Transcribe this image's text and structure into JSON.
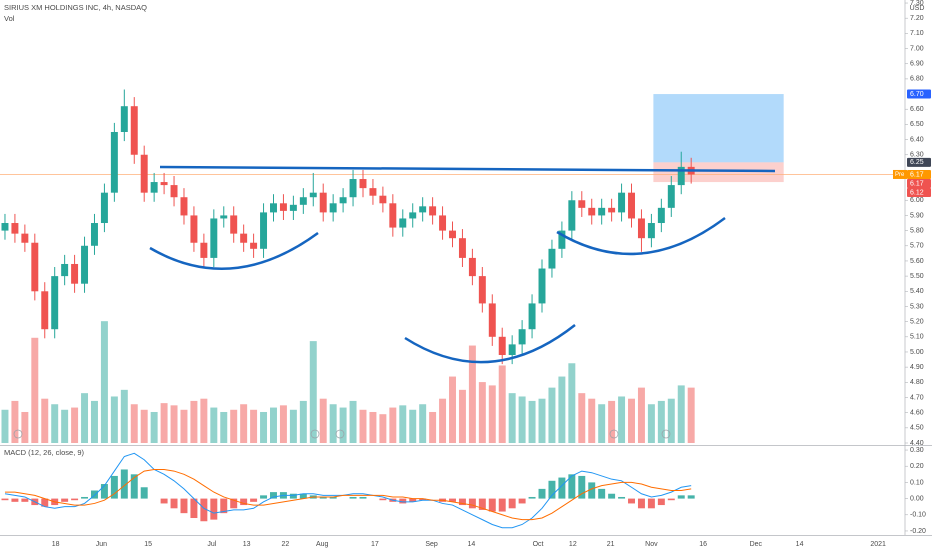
{
  "chart_data": {
    "type": "candlestick",
    "title": "SIRIUS XM HOLDINGS INC, 4h, NASDAQ",
    "volume_label": "Vol",
    "currency": "USD",
    "up_color": "#26a69a",
    "down_color": "#ef5350",
    "open": [
      5.8,
      5.85,
      5.78,
      5.72,
      5.4,
      5.15,
      5.5,
      5.58,
      5.45,
      5.7,
      5.85,
      6.05,
      6.45,
      6.62,
      6.3,
      6.05,
      6.12,
      6.1,
      6.02,
      5.9,
      5.72,
      5.62,
      5.88,
      5.9,
      5.78,
      5.72,
      5.68,
      5.92,
      5.98,
      5.93,
      5.97,
      6.02,
      6.05,
      5.92,
      5.98,
      6.02,
      6.14,
      6.08,
      6.03,
      5.98,
      5.82,
      5.88,
      5.92,
      5.96,
      5.9,
      5.8,
      5.75,
      5.62,
      5.5,
      5.32,
      5.1,
      4.98,
      5.05,
      5.15,
      5.32,
      5.55,
      5.68,
      5.8,
      6.0,
      5.95,
      5.9,
      5.95,
      5.92,
      6.05,
      5.88,
      5.75,
      5.85,
      5.95,
      6.1,
      6.22
    ],
    "high": [
      5.91,
      5.91,
      5.84,
      5.78,
      5.46,
      5.56,
      5.64,
      5.64,
      5.76,
      5.91,
      6.11,
      6.51,
      6.73,
      6.68,
      6.36,
      6.18,
      6.18,
      6.16,
      6.08,
      5.96,
      5.78,
      5.94,
      5.96,
      5.96,
      5.84,
      5.78,
      5.98,
      6.04,
      6.04,
      6.03,
      6.08,
      6.18,
      6.11,
      6.04,
      6.08,
      6.2,
      6.2,
      6.14,
      6.09,
      6.04,
      5.94,
      5.98,
      6.02,
      6.02,
      5.96,
      5.86,
      5.81,
      5.68,
      5.56,
      5.38,
      5.16,
      5.11,
      5.21,
      5.38,
      5.61,
      5.74,
      5.86,
      6.06,
      6.06,
      6.01,
      6.01,
      6.01,
      6.11,
      6.11,
      5.94,
      5.91,
      6.01,
      6.16,
      6.32,
      6.28
    ],
    "low": [
      5.74,
      5.72,
      5.66,
      5.34,
      5.09,
      5.09,
      5.44,
      5.39,
      5.39,
      5.64,
      5.79,
      5.99,
      6.39,
      6.24,
      5.99,
      5.99,
      6.04,
      5.96,
      5.84,
      5.66,
      5.56,
      5.56,
      5.82,
      5.72,
      5.66,
      5.62,
      5.62,
      5.86,
      5.87,
      5.87,
      5.91,
      5.96,
      5.86,
      5.86,
      5.92,
      5.96,
      6.02,
      5.97,
      5.92,
      5.76,
      5.76,
      5.82,
      5.86,
      5.84,
      5.74,
      5.69,
      5.56,
      5.44,
      5.26,
      5.04,
      4.92,
      4.92,
      4.99,
      5.09,
      5.26,
      5.49,
      5.62,
      5.74,
      5.89,
      5.84,
      5.84,
      5.86,
      5.86,
      5.82,
      5.66,
      5.69,
      5.79,
      5.89,
      6.04,
      6.11
    ],
    "close": [
      5.85,
      5.78,
      5.72,
      5.4,
      5.15,
      5.5,
      5.58,
      5.45,
      5.7,
      5.85,
      6.05,
      6.45,
      6.62,
      6.3,
      6.05,
      6.12,
      6.1,
      6.02,
      5.9,
      5.72,
      5.62,
      5.88,
      5.9,
      5.78,
      5.72,
      5.68,
      5.92,
      5.98,
      5.93,
      5.97,
      6.02,
      6.05,
      5.92,
      5.98,
      6.02,
      6.14,
      6.08,
      6.03,
      5.98,
      5.82,
      5.88,
      5.92,
      5.96,
      5.9,
      5.8,
      5.75,
      5.62,
      5.5,
      5.32,
      5.1,
      4.98,
      5.05,
      5.15,
      5.32,
      5.55,
      5.68,
      5.8,
      6.0,
      5.95,
      5.9,
      5.95,
      5.92,
      6.05,
      5.88,
      5.75,
      5.85,
      5.95,
      6.1,
      6.22,
      6.17
    ],
    "volume": [
      30,
      38,
      28,
      95,
      40,
      35,
      30,
      32,
      45,
      38,
      110,
      42,
      48,
      35,
      30,
      28,
      36,
      34,
      30,
      38,
      40,
      32,
      28,
      30,
      35,
      30,
      28,
      32,
      34,
      30,
      38,
      92,
      40,
      35,
      32,
      38,
      30,
      28,
      26,
      32,
      34,
      30,
      35,
      28,
      40,
      60,
      48,
      88,
      55,
      52,
      70,
      45,
      42,
      38,
      40,
      50,
      60,
      72,
      45,
      40,
      35,
      38,
      42,
      40,
      50,
      35,
      38,
      40,
      52,
      50
    ],
    "vlim": [
      0,
      400
    ],
    "xlim": [
      -0.5,
      90.5
    ],
    "xticks": [
      {
        "value": 5.1,
        "label": "18"
      },
      {
        "value": 9.7,
        "label": "Jun"
      },
      {
        "value": 14.4,
        "label": "15"
      },
      {
        "value": 20.8,
        "label": "Jul"
      },
      {
        "value": 24.3,
        "label": "13"
      },
      {
        "value": 28.2,
        "label": "22"
      },
      {
        "value": 31.9,
        "label": "Aug"
      },
      {
        "value": 37.2,
        "label": "17"
      },
      {
        "value": 42.9,
        "label": "Sep"
      },
      {
        "value": 46.9,
        "label": "14"
      },
      {
        "value": 53.6,
        "label": "Oct"
      },
      {
        "value": 57.1,
        "label": "12"
      },
      {
        "value": 60.9,
        "label": "21"
      },
      {
        "value": 65.0,
        "label": "Nov"
      },
      {
        "value": 70.2,
        "label": "16"
      },
      {
        "value": 75.5,
        "label": "Dec"
      },
      {
        "value": 79.9,
        "label": "14"
      },
      {
        "value": 87.8,
        "label": "2021"
      }
    ],
    "ylim": [
      4.4,
      7.32
    ],
    "yticks": [
      {
        "value": 7.3,
        "label": "7.30"
      },
      {
        "value": 7.2,
        "label": "7.20"
      },
      {
        "value": 7.1,
        "label": "7.10"
      },
      {
        "value": 7.0,
        "label": "7.00"
      },
      {
        "value": 6.9,
        "label": "6.90"
      },
      {
        "value": 6.8,
        "label": "6.80"
      },
      {
        "value": 6.6,
        "label": "6.60"
      },
      {
        "value": 6.5,
        "label": "6.50"
      },
      {
        "value": 6.4,
        "label": "6.40"
      },
      {
        "value": 6.3,
        "label": "6.30"
      },
      {
        "value": 6.0,
        "label": "6.00"
      },
      {
        "value": 5.9,
        "label": "5.90"
      },
      {
        "value": 5.8,
        "label": "5.80"
      },
      {
        "value": 5.7,
        "label": "5.70"
      },
      {
        "value": 5.6,
        "label": "5.60"
      },
      {
        "value": 5.5,
        "label": "5.50"
      },
      {
        "value": 5.4,
        "label": "5.40"
      },
      {
        "value": 5.3,
        "label": "5.30"
      },
      {
        "value": 5.2,
        "label": "5.20"
      },
      {
        "value": 5.1,
        "label": "5.10"
      },
      {
        "value": 5.0,
        "label": "5.00"
      },
      {
        "value": 4.9,
        "label": "4.90"
      },
      {
        "value": 4.8,
        "label": "4.80"
      },
      {
        "value": 4.7,
        "label": "4.70"
      },
      {
        "value": 4.6,
        "label": "4.60"
      },
      {
        "value": 4.5,
        "label": "4.50"
      },
      {
        "value": 4.4,
        "label": "4.40"
      }
    ],
    "markers": [
      {
        "value": 6.7,
        "label": "6.70"
      },
      6.25,
      6.17,
      6.17,
      6.12
    ],
    "marker_colors": [
      "#2962ff",
      "#3f4656",
      "#ff9800",
      "#ef5350",
      "#ef5350"
    ],
    "pre_label": "Pre",
    "macd": {
      "title": "MACD (12, 26, close, 9)",
      "ylim": [
        -0.225,
        0.325
      ],
      "yticks": [
        {
          "value": 0.3,
          "label": "0.30"
        },
        {
          "value": 0.2,
          "label": "0.20"
        },
        {
          "value": 0.1,
          "label": "0.10"
        },
        {
          "value": 0,
          "label": "0.00"
        },
        {
          "value": -0.1,
          "label": "-0.10"
        },
        {
          "value": -0.2,
          "label": "-0.20"
        }
      ],
      "macd_color": "#2196f3",
      "signal_color": "#ff6d00",
      "macd": [
        0.03,
        0.02,
        0.01,
        -0.02,
        -0.05,
        -0.06,
        -0.05,
        -0.05,
        -0.03,
        0.02,
        0.08,
        0.17,
        0.26,
        0.28,
        0.24,
        0.18,
        0.15,
        0.11,
        0.06,
        0.0,
        -0.06,
        -0.09,
        -0.08,
        -0.07,
        -0.07,
        -0.06,
        -0.02,
        0.01,
        0.02,
        0.02,
        0.03,
        0.03,
        0.02,
        0.02,
        0.02,
        0.03,
        0.03,
        0.02,
        0.01,
        -0.01,
        -0.02,
        -0.02,
        -0.01,
        -0.01,
        -0.03,
        -0.04,
        -0.07,
        -0.1,
        -0.13,
        -0.16,
        -0.18,
        -0.18,
        -0.16,
        -0.12,
        -0.06,
        0.02,
        0.08,
        0.14,
        0.17,
        0.16,
        0.14,
        0.12,
        0.11,
        0.07,
        0.03,
        0.01,
        0.02,
        0.04,
        0.07,
        0.08
      ],
      "signal": [
        0.04,
        0.04,
        0.03,
        0.02,
        0.0,
        -0.02,
        -0.03,
        -0.04,
        -0.04,
        -0.03,
        -0.01,
        0.03,
        0.08,
        0.13,
        0.17,
        0.18,
        0.18,
        0.17,
        0.15,
        0.12,
        0.08,
        0.04,
        0.01,
        -0.01,
        -0.03,
        -0.04,
        -0.04,
        -0.03,
        -0.02,
        -0.01,
        0.0,
        0.01,
        0.01,
        0.01,
        0.02,
        0.02,
        0.02,
        0.02,
        0.02,
        0.01,
        0.01,
        0.0,
        0.0,
        -0.01,
        -0.01,
        -0.02,
        -0.03,
        -0.04,
        -0.06,
        -0.08,
        -0.1,
        -0.12,
        -0.13,
        -0.13,
        -0.12,
        -0.09,
        -0.05,
        -0.01,
        0.03,
        0.06,
        0.08,
        0.09,
        0.1,
        0.1,
        0.09,
        0.07,
        0.06,
        0.05,
        0.05,
        0.06
      ],
      "histogram": [
        -0.01,
        -0.02,
        -0.02,
        -0.04,
        -0.05,
        -0.04,
        -0.02,
        -0.01,
        0.01,
        0.05,
        0.09,
        0.14,
        0.18,
        0.15,
        0.07,
        0,
        -0.03,
        -0.06,
        -0.09,
        -0.12,
        -0.14,
        -0.13,
        -0.09,
        -0.06,
        -0.04,
        -0.02,
        0.02,
        0.04,
        0.04,
        0.03,
        0.03,
        0.02,
        0.01,
        0.01,
        0,
        0.01,
        0.01,
        0,
        -0.01,
        -0.02,
        -0.03,
        -0.02,
        -0.01,
        0,
        -0.02,
        -0.02,
        -0.04,
        -0.06,
        -0.07,
        -0.08,
        -0.08,
        -0.06,
        -0.03,
        0.01,
        0.06,
        0.11,
        0.13,
        0.15,
        0.14,
        0.1,
        0.06,
        0.03,
        0.01,
        -0.03,
        -0.06,
        -0.06,
        -0.04,
        -0.01,
        0.02,
        0.02
      ]
    }
  }
}
